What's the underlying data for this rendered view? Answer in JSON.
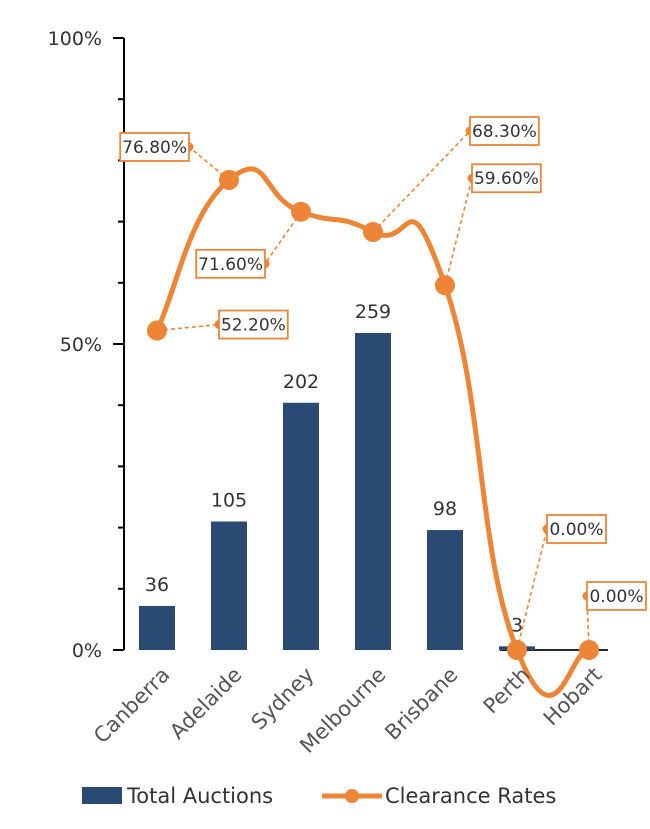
{
  "chart_data": {
    "type": "bar",
    "categories": [
      "Canberra",
      "Adelaide",
      "Sydney",
      "Melbourne",
      "Brisbane",
      "Perth",
      "Hobart"
    ],
    "series": [
      {
        "name": "Total Auctions",
        "type": "bar",
        "values": [
          36,
          105,
          202,
          259,
          98,
          3,
          null
        ],
        "data_labels": [
          "36",
          "105",
          "202",
          "259",
          "98",
          "3",
          ""
        ]
      },
      {
        "name": "Clearance Rates",
        "type": "line",
        "values": [
          52.2,
          76.8,
          71.6,
          68.3,
          59.6,
          0.0,
          0.0
        ],
        "data_labels": [
          "52.20%",
          "76.80%",
          "71.60%",
          "68.30%",
          "59.60%",
          "0.00%",
          "0.00%"
        ]
      }
    ],
    "y_axis": {
      "ticks": [
        "0%",
        "50%",
        "100%"
      ],
      "range": [
        0,
        100
      ]
    },
    "bar_value_max": 500,
    "legend_position": "bottom",
    "colors": {
      "bar": "#2a4a74",
      "line": "#ec8536",
      "axis": "#000000"
    }
  }
}
